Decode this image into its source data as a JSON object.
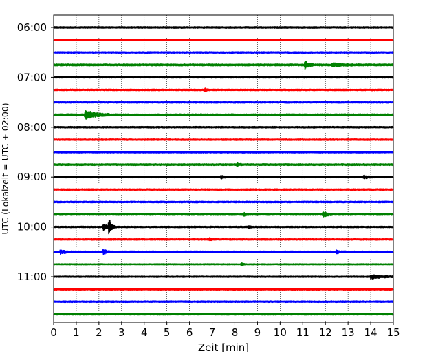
{
  "chart_data": {
    "type": "line",
    "title": "",
    "xlabel": "Zeit  [min]",
    "ylabel": "UTC (Lokalzeit = UTC + 02:00)",
    "xlim": [
      0,
      15
    ],
    "x_ticks": [
      "0",
      "1",
      "2",
      "3",
      "4",
      "5",
      "6",
      "7",
      "8",
      "9",
      "10",
      "11",
      "12",
      "13",
      "14",
      "15"
    ],
    "y_tick_labels": [
      "06:00",
      "07:00",
      "08:00",
      "09:00",
      "10:00",
      "11:00"
    ],
    "grid": "vertical dotted lines at each minute",
    "colors": {
      "black": "#000000",
      "red": "#ff0000",
      "blue": "#0000ff",
      "green": "#008000"
    },
    "traces": [
      {
        "start": "06:00",
        "color": "black",
        "amp": 0.7,
        "events": []
      },
      {
        "start": "06:15",
        "color": "red",
        "amp": 0.7,
        "events": []
      },
      {
        "start": "06:30",
        "color": "blue",
        "amp": 0.7,
        "events": []
      },
      {
        "start": "06:45",
        "color": "green",
        "amp": 0.9,
        "events": [
          {
            "t": 11.1,
            "amp": 3.5,
            "dur": 0.4
          },
          {
            "t": 12.3,
            "amp": 1.2,
            "dur": 1.2
          }
        ]
      },
      {
        "start": "07:00",
        "color": "black",
        "amp": 0.7,
        "events": []
      },
      {
        "start": "07:15",
        "color": "red",
        "amp": 0.7,
        "events": [
          {
            "t": 6.7,
            "amp": 1.4,
            "dur": 0.2
          }
        ]
      },
      {
        "start": "07:30",
        "color": "blue",
        "amp": 0.7,
        "events": []
      },
      {
        "start": "07:45",
        "color": "green",
        "amp": 0.9,
        "events": [
          {
            "t": 1.4,
            "amp": 4.0,
            "dur": 1.2
          }
        ]
      },
      {
        "start": "08:00",
        "color": "black",
        "amp": 0.7,
        "events": []
      },
      {
        "start": "08:15",
        "color": "red",
        "amp": 0.7,
        "events": []
      },
      {
        "start": "08:30",
        "color": "blue",
        "amp": 0.7,
        "events": []
      },
      {
        "start": "08:45",
        "color": "green",
        "amp": 0.8,
        "events": [
          {
            "t": 8.1,
            "amp": 1.3,
            "dur": 0.3
          }
        ]
      },
      {
        "start": "09:00",
        "color": "black",
        "amp": 0.7,
        "events": [
          {
            "t": 7.4,
            "amp": 1.3,
            "dur": 0.3
          },
          {
            "t": 13.7,
            "amp": 1.2,
            "dur": 0.6
          }
        ]
      },
      {
        "start": "09:15",
        "color": "red",
        "amp": 0.7,
        "events": []
      },
      {
        "start": "09:30",
        "color": "blue",
        "amp": 0.7,
        "events": []
      },
      {
        "start": "09:45",
        "color": "green",
        "amp": 0.8,
        "events": [
          {
            "t": 11.9,
            "amp": 3.0,
            "dur": 0.4
          },
          {
            "t": 8.4,
            "amp": 1.3,
            "dur": 0.2
          }
        ]
      },
      {
        "start": "10:00",
        "color": "black",
        "amp": 0.7,
        "events": [
          {
            "t": 2.45,
            "amp": 8.0,
            "dur": 0.25
          },
          {
            "t": 2.2,
            "amp": 2.5,
            "dur": 0.6
          },
          {
            "t": 8.6,
            "amp": 1.3,
            "dur": 0.2
          }
        ]
      },
      {
        "start": "10:15",
        "color": "red",
        "amp": 0.7,
        "events": [
          {
            "t": 6.9,
            "amp": 1.3,
            "dur": 0.2
          }
        ]
      },
      {
        "start": "10:30",
        "color": "blue",
        "amp": 0.8,
        "events": [
          {
            "t": 2.2,
            "amp": 2.5,
            "dur": 0.3
          },
          {
            "t": 0.3,
            "amp": 1.5,
            "dur": 0.6
          },
          {
            "t": 12.5,
            "amp": 1.4,
            "dur": 0.4
          }
        ]
      },
      {
        "start": "10:45",
        "color": "green",
        "amp": 0.5,
        "events": [
          {
            "t": 8.3,
            "amp": 1.2,
            "dur": 0.2
          }
        ]
      },
      {
        "start": "11:00",
        "color": "black",
        "amp": 0.6,
        "events": [
          {
            "t": 14.0,
            "amp": 1.6,
            "dur": 1.5
          }
        ]
      },
      {
        "start": "11:15",
        "color": "red",
        "amp": 0.8,
        "events": []
      },
      {
        "start": "11:30",
        "color": "blue",
        "amp": 0.7,
        "events": []
      },
      {
        "start": "11:45",
        "color": "green",
        "amp": 0.8,
        "events": []
      }
    ]
  }
}
